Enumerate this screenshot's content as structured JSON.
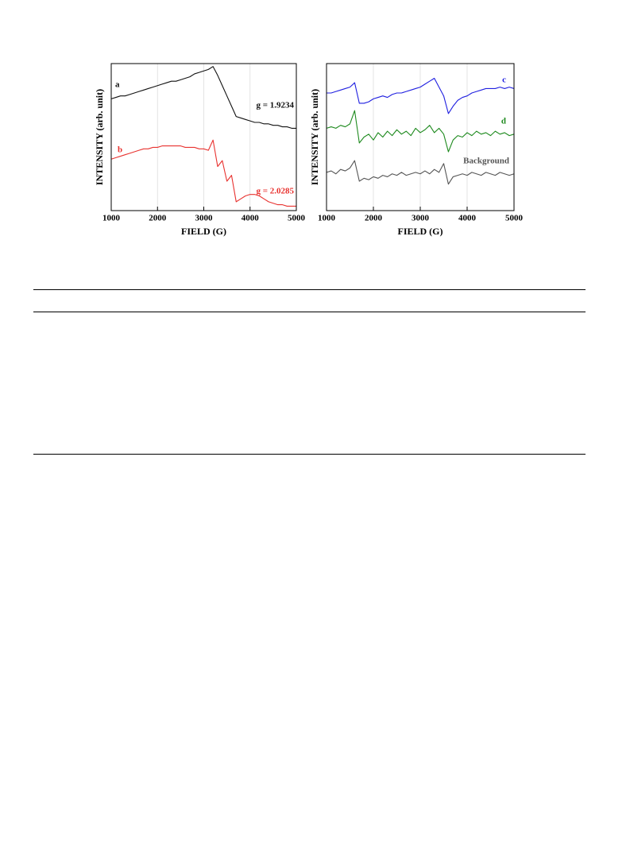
{
  "chart_data": [
    {
      "type": "line",
      "x_label": "FIELD (G)",
      "y_label": "INTENSITY (arb. unit)",
      "x": [
        1000,
        1100,
        1200,
        1300,
        1400,
        1500,
        1600,
        1700,
        1800,
        1900,
        2000,
        2100,
        2200,
        2300,
        2400,
        2500,
        2600,
        2700,
        2800,
        2900,
        3000,
        3100,
        3200,
        3300,
        3400,
        3500,
        3600,
        3700,
        3800,
        3900,
        4000,
        4100,
        4200,
        4300,
        4400,
        4500,
        4600,
        4700,
        4800,
        4900,
        5000
      ],
      "xlim": [
        1000,
        5000
      ],
      "xticks": [
        1000,
        2000,
        3000,
        4000,
        5000
      ],
      "ylim": [
        0,
        100
      ],
      "grid": true,
      "series": [
        {
          "name": "a",
          "color": "#111111",
          "values": [
            76,
            77,
            78,
            78,
            79,
            80,
            81,
            82,
            83,
            84,
            85,
            86,
            87,
            88,
            88,
            89,
            90,
            91,
            93,
            94,
            95,
            96,
            98,
            92,
            85,
            78,
            71,
            64,
            63,
            62,
            61,
            60,
            60,
            59,
            59,
            58,
            58,
            57,
            57,
            56,
            56
          ]
        },
        {
          "name": "b",
          "color": "#e8322f",
          "values": [
            35,
            36,
            37,
            38,
            39,
            40,
            41,
            42,
            42,
            43,
            43,
            44,
            44,
            44,
            44,
            44,
            43,
            43,
            43,
            42,
            42,
            41,
            48,
            30,
            34,
            20,
            24,
            6,
            8,
            10,
            11,
            11,
            10,
            8,
            6,
            5,
            4,
            4,
            3,
            3,
            3
          ]
        }
      ],
      "annotations": [
        "g = 1.9234",
        "g = 2.0285"
      ]
    },
    {
      "type": "line",
      "x_label": "FIELD (G)",
      "y_label": "INTENSITY (arb. unit)",
      "x": [
        1000,
        1100,
        1200,
        1300,
        1400,
        1500,
        1600,
        1700,
        1800,
        1900,
        2000,
        2100,
        2200,
        2300,
        2400,
        2500,
        2600,
        2700,
        2800,
        2900,
        3000,
        3100,
        3200,
        3300,
        3400,
        3500,
        3600,
        3700,
        3800,
        3900,
        4000,
        4100,
        4200,
        4300,
        4400,
        4500,
        4600,
        4700,
        4800,
        4900,
        5000
      ],
      "xlim": [
        1000,
        5000
      ],
      "xticks": [
        1000,
        2000,
        3000,
        4000,
        5000
      ],
      "ylim": [
        0,
        100
      ],
      "grid": true,
      "series": [
        {
          "name": "c",
          "color": "#1f1fe0",
          "values": [
            80,
            80,
            81,
            82,
            83,
            84,
            87,
            73,
            73,
            74,
            76,
            77,
            78,
            77,
            79,
            80,
            80,
            81,
            82,
            83,
            84,
            86,
            88,
            90,
            84,
            78,
            66,
            71,
            75,
            77,
            78,
            80,
            81,
            82,
            83,
            83,
            83,
            84,
            83,
            84,
            83
          ]
        },
        {
          "name": "d",
          "color": "#1e8a1e",
          "values": [
            56,
            57,
            56,
            58,
            57,
            59,
            68,
            46,
            50,
            52,
            48,
            53,
            50,
            54,
            51,
            55,
            52,
            54,
            51,
            56,
            53,
            55,
            58,
            53,
            56,
            52,
            40,
            48,
            51,
            50,
            53,
            51,
            54,
            52,
            53,
            51,
            54,
            52,
            53,
            51,
            52
          ]
        },
        {
          "name": "Background",
          "color": "#555555",
          "values": [
            26,
            27,
            25,
            28,
            27,
            29,
            34,
            20,
            22,
            21,
            23,
            22,
            24,
            23,
            25,
            24,
            26,
            24,
            25,
            26,
            25,
            27,
            25,
            28,
            26,
            32,
            18,
            23,
            24,
            25,
            24,
            26,
            25,
            24,
            26,
            25,
            24,
            26,
            25,
            24,
            25
          ]
        }
      ],
      "annotations": []
    }
  ]
}
